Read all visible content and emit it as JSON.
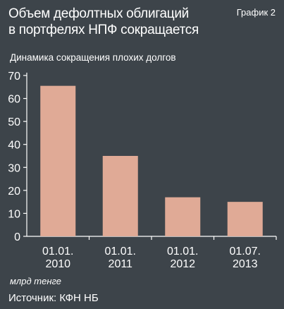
{
  "header": {
    "title_line1": "Объем дефолтных облигаций",
    "title_line2": "в портфелях НПФ сокращается",
    "chart_number": "График 2"
  },
  "subtitle": "Динамика сокращения плохих долгов",
  "unit_label": "млрд тенге",
  "source": "Источник: КФН НБ",
  "colors": {
    "background": "#3d444a",
    "bar": "#e0aa96",
    "axis": "#ffffff"
  },
  "chart_data": {
    "type": "bar",
    "categories": [
      [
        "01.01.",
        "2010"
      ],
      [
        "01.01.",
        "2011"
      ],
      [
        "01.01.",
        "2012"
      ],
      [
        "01.07.",
        "2013"
      ]
    ],
    "values": [
      65.5,
      35,
      17,
      15
    ],
    "yticks": [
      0,
      10,
      20,
      30,
      40,
      50,
      60,
      70
    ],
    "ylim": [
      0,
      70
    ],
    "grid": false,
    "legend": "none"
  }
}
